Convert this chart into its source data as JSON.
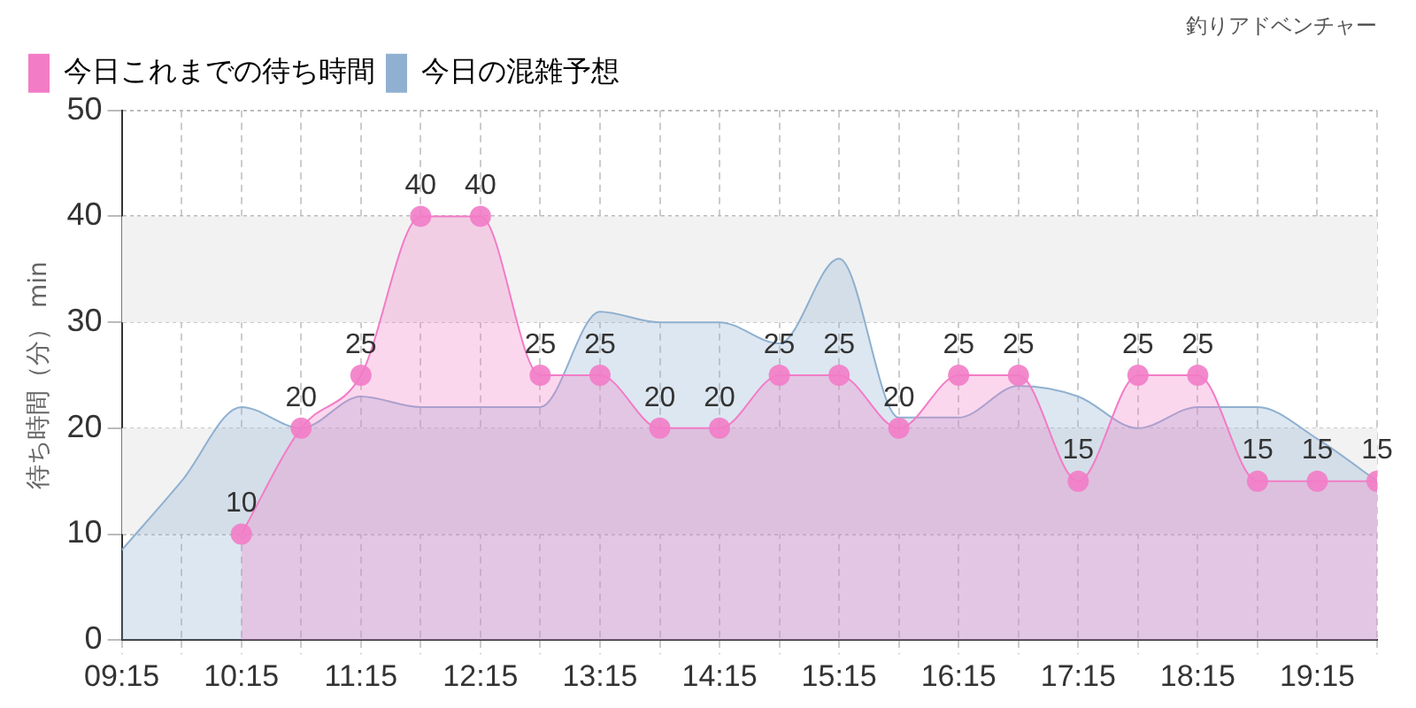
{
  "chart_data": {
    "type": "area",
    "subtitle": "釣りアドベンチャー",
    "ylabel": "待ち時間（分） min",
    "xlim": [
      9.25,
      19.75
    ],
    "xticks": [
      {
        "value": 9.25,
        "label": "09:15"
      },
      {
        "value": 9.75,
        "label": null
      },
      {
        "value": 10.25,
        "label": "10:15"
      },
      {
        "value": 10.75,
        "label": null
      },
      {
        "value": 11.25,
        "label": "11:15"
      },
      {
        "value": 11.75,
        "label": null
      },
      {
        "value": 12.25,
        "label": "12:15"
      },
      {
        "value": 12.75,
        "label": null
      },
      {
        "value": 13.25,
        "label": "13:15"
      },
      {
        "value": 13.75,
        "label": null
      },
      {
        "value": 14.25,
        "label": "14:15"
      },
      {
        "value": 14.75,
        "label": null
      },
      {
        "value": 15.25,
        "label": "15:15"
      },
      {
        "value": 15.75,
        "label": null
      },
      {
        "value": 16.25,
        "label": "16:15"
      },
      {
        "value": 16.75,
        "label": null
      },
      {
        "value": 17.25,
        "label": "17:15"
      },
      {
        "value": 17.75,
        "label": null
      },
      {
        "value": 18.25,
        "label": "18:15"
      },
      {
        "value": 18.75,
        "label": null
      },
      {
        "value": 19.25,
        "label": "19:15"
      },
      {
        "value": 19.75,
        "label": null
      }
    ],
    "ylim": [
      0,
      50
    ],
    "yticks": [
      0,
      10,
      20,
      30,
      40,
      50
    ],
    "grid": true,
    "legend": "top left",
    "bands": [
      {
        "axis": "y",
        "from": 10,
        "to": 20,
        "color": "#f2f2f2"
      },
      {
        "axis": "y",
        "from": 30,
        "to": 40,
        "color": "#f2f2f2"
      }
    ],
    "series": [
      {
        "name": "今日これまでの待ち時間",
        "color": "#f27cc6",
        "marker": "circle",
        "x": [
          10.25,
          10.75,
          11.25,
          11.75,
          12.25,
          12.75,
          13.25,
          13.75,
          14.25,
          14.75,
          15.25,
          15.75,
          16.25,
          16.75,
          17.25,
          17.75,
          18.25,
          18.75,
          19.25,
          19.75
        ],
        "values": [
          10,
          20,
          25,
          40,
          40,
          25,
          25,
          20,
          20,
          25,
          25,
          20,
          25,
          25,
          15,
          25,
          25,
          15,
          15,
          15
        ],
        "value_labels": [
          "10",
          "20",
          "25",
          "40",
          "40",
          "25",
          "25",
          "20",
          "20",
          "25",
          "25",
          "20",
          "25",
          "25",
          "15",
          "25",
          "25",
          "15",
          "15",
          "15"
        ]
      },
      {
        "name": "今日の混雑予想",
        "color": "#8fb0d0",
        "marker": "none",
        "x": [
          9.25,
          9.75,
          10.25,
          10.75,
          11.25,
          11.75,
          12.25,
          12.75,
          13.25,
          13.75,
          14.25,
          14.75,
          15.25,
          15.75,
          16.25,
          16.75,
          17.25,
          17.75,
          18.25,
          18.75,
          19.25,
          19.75
        ],
        "values": [
          8.5,
          15,
          22,
          20,
          23,
          22,
          22,
          22,
          31,
          30,
          30,
          28,
          36,
          21,
          21,
          24,
          23,
          20,
          22,
          22,
          19,
          15
        ]
      }
    ]
  }
}
